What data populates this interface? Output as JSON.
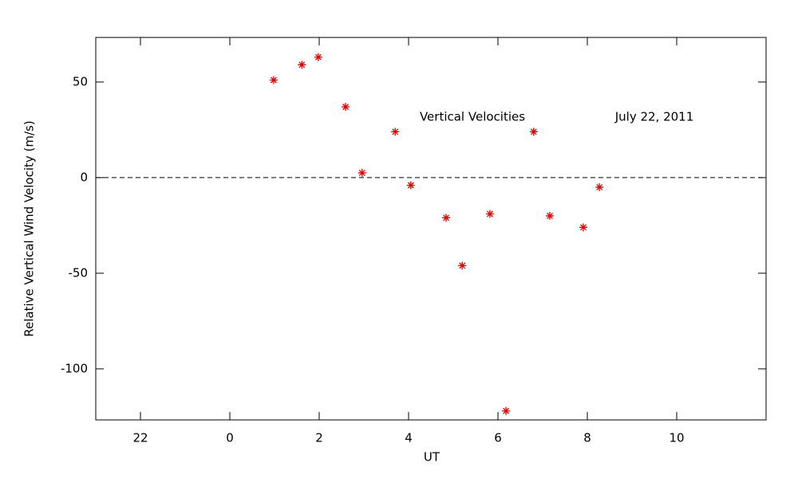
{
  "chart_data": {
    "type": "scatter",
    "xlabel": "UT",
    "ylabel": "Relative Vertical Wind Velocity (m/s)",
    "annotations": [
      "Vertical Velocities",
      "July 22, 2011"
    ],
    "series": [
      {
        "color": "#e00000",
        "x": [
          0.98,
          1.61,
          1.98,
          2.59,
          2.96,
          3.7,
          4.05,
          4.84,
          5.2,
          5.82,
          6.18,
          6.8,
          7.16,
          7.91,
          8.27
        ],
        "values": [
          51,
          59,
          63,
          37,
          2.5,
          24,
          -4,
          -21,
          -46,
          -19,
          -122,
          24,
          -20,
          -26,
          -5
        ]
      }
    ],
    "xlim": [
      -3,
      12
    ],
    "xticks": [
      {
        "value": -2,
        "label": "22"
      },
      0,
      2,
      4,
      6,
      8,
      10
    ],
    "ylim": [
      -126.7,
      73.3
    ],
    "yticks": [
      -100,
      -50,
      0,
      50
    ],
    "hline": 0
  }
}
